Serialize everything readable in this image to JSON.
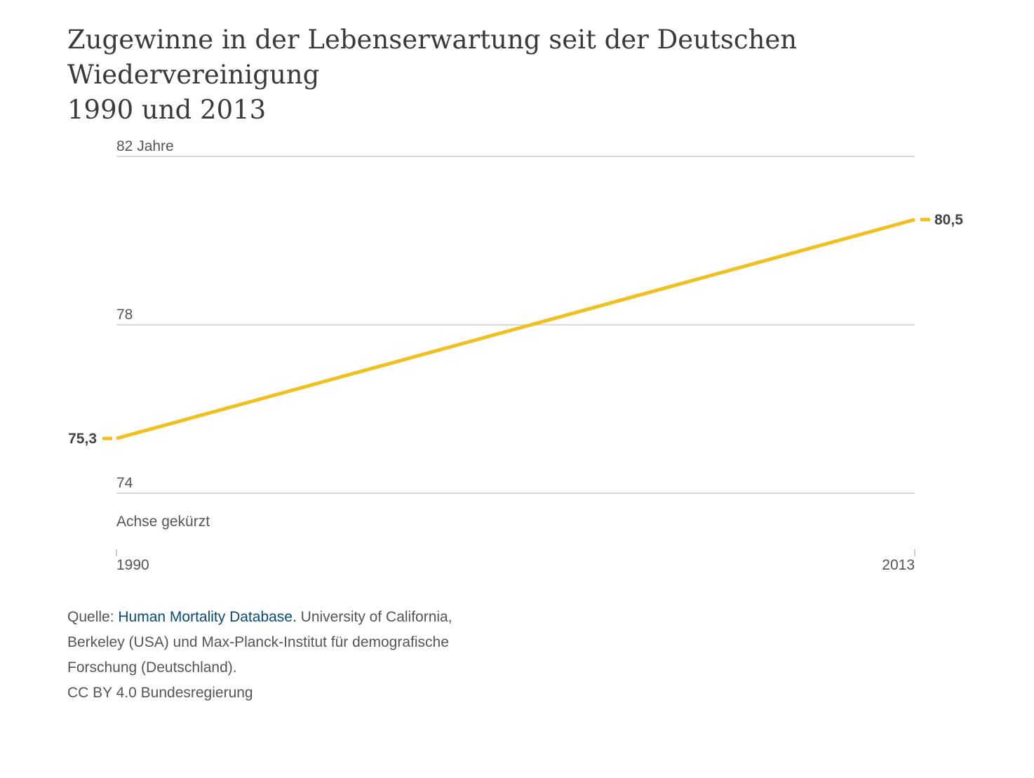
{
  "title_line1": "Zugewinne in der Lebenserwartung seit der Deutschen Wiedervereinigung",
  "title_line2": "1990 und 2013",
  "source": {
    "prefix": "Quelle: ",
    "link_text": "Human Mortality Database.",
    "rest_line1": " University of California,",
    "line2": "Berkeley (USA) und Max-Planck-Institut für demografische",
    "line3": "Forschung (Deutschland).",
    "line4": "CC BY 4.0 Bundesregierung"
  },
  "link_color": "#0a4a7a",
  "chart_data": {
    "type": "line",
    "x": [
      1990,
      2013
    ],
    "x_tick_labels": [
      "1990",
      "2013"
    ],
    "y_ticks": [
      74,
      78,
      82
    ],
    "y_tick_labels": [
      "74",
      "78",
      "82 Jahre"
    ],
    "ylim": [
      74,
      82
    ],
    "axis_note": "Achse gekürzt",
    "series": [
      {
        "values": [
          75.3,
          80.5
        ],
        "labels": [
          "75,3",
          "80,5"
        ],
        "color": "#f0c020"
      }
    ],
    "grid": true
  }
}
